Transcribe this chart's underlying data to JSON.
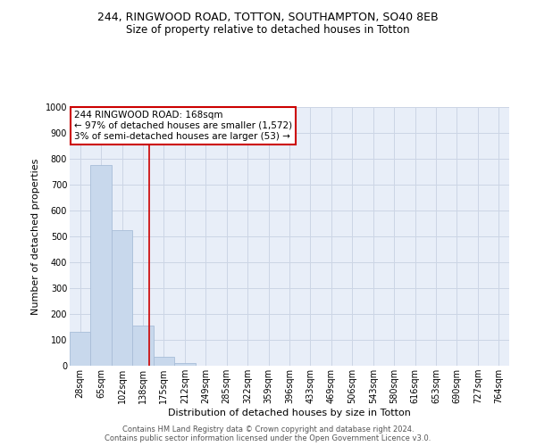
{
  "title": "244, RINGWOOD ROAD, TOTTON, SOUTHAMPTON, SO40 8EB",
  "subtitle": "Size of property relative to detached houses in Totton",
  "xlabel": "Distribution of detached houses by size in Totton",
  "ylabel": "Number of detached properties",
  "bin_labels": [
    "28sqm",
    "65sqm",
    "102sqm",
    "138sqm",
    "175sqm",
    "212sqm",
    "249sqm",
    "285sqm",
    "322sqm",
    "359sqm",
    "396sqm",
    "433sqm",
    "469sqm",
    "506sqm",
    "543sqm",
    "580sqm",
    "616sqm",
    "653sqm",
    "690sqm",
    "727sqm",
    "764sqm"
  ],
  "bar_values": [
    130,
    775,
    525,
    155,
    35,
    12,
    0,
    0,
    0,
    0,
    0,
    0,
    0,
    0,
    0,
    0,
    0,
    0,
    0,
    0,
    0
  ],
  "bar_color": "#c8d8ec",
  "bar_edge_color": "#a8bdd8",
  "grid_color": "#ccd5e5",
  "background_color": "#e8eef8",
  "ylim": [
    0,
    1000
  ],
  "yticks": [
    0,
    100,
    200,
    300,
    400,
    500,
    600,
    700,
    800,
    900,
    1000
  ],
  "property_line_color": "#cc0000",
  "annotation_line1": "244 RINGWOOD ROAD: 168sqm",
  "annotation_line2": "← 97% of detached houses are smaller (1,572)",
  "annotation_line3": "3% of semi-detached houses are larger (53) →",
  "annotation_box_color": "#cc0000",
  "footer_line1": "Contains HM Land Registry data © Crown copyright and database right 2024.",
  "footer_line2": "Contains public sector information licensed under the Open Government Licence v3.0.",
  "title_fontsize": 9,
  "subtitle_fontsize": 8.5,
  "ylabel_fontsize": 8,
  "xlabel_fontsize": 8,
  "tick_fontsize": 7,
  "annotation_fontsize": 7.5
}
